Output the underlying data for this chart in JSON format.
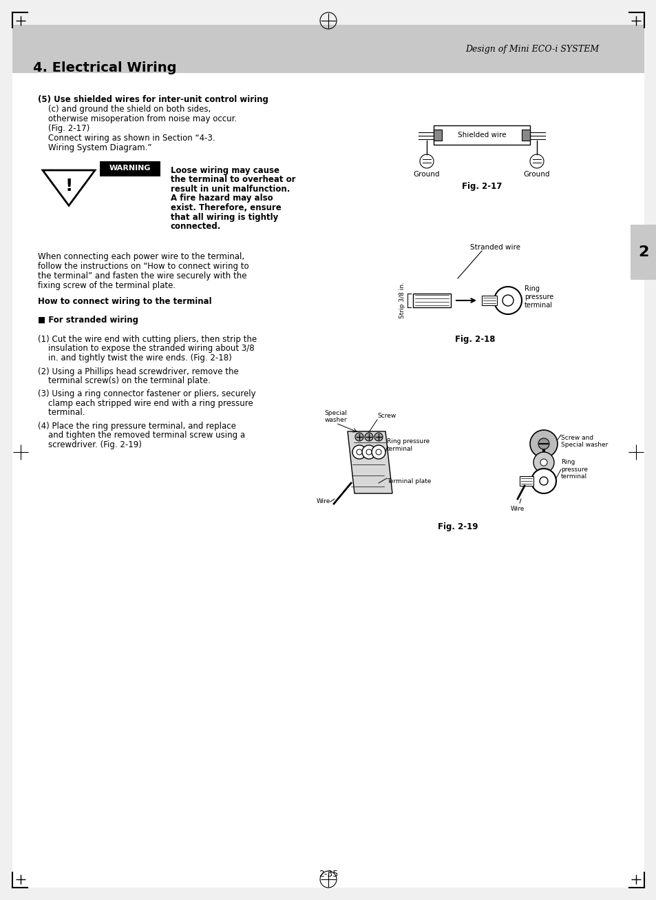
{
  "page_bg": "#f0f0f0",
  "content_bg": "#ffffff",
  "header_bg": "#d0d0d0",
  "title": "4. Electrical Wiring",
  "header_text": "Design of Mini ECO-i SYSTEM",
  "page_number": "2-35",
  "chapter_num": "2",
  "body_text_color": "#000000",
  "warning_bg": "#000000",
  "warning_text": "#ffffff",
  "fig17_label": "Fig. 2-17",
  "fig18_label": "Fig. 2-18",
  "fig19_label": "Fig. 2-19"
}
